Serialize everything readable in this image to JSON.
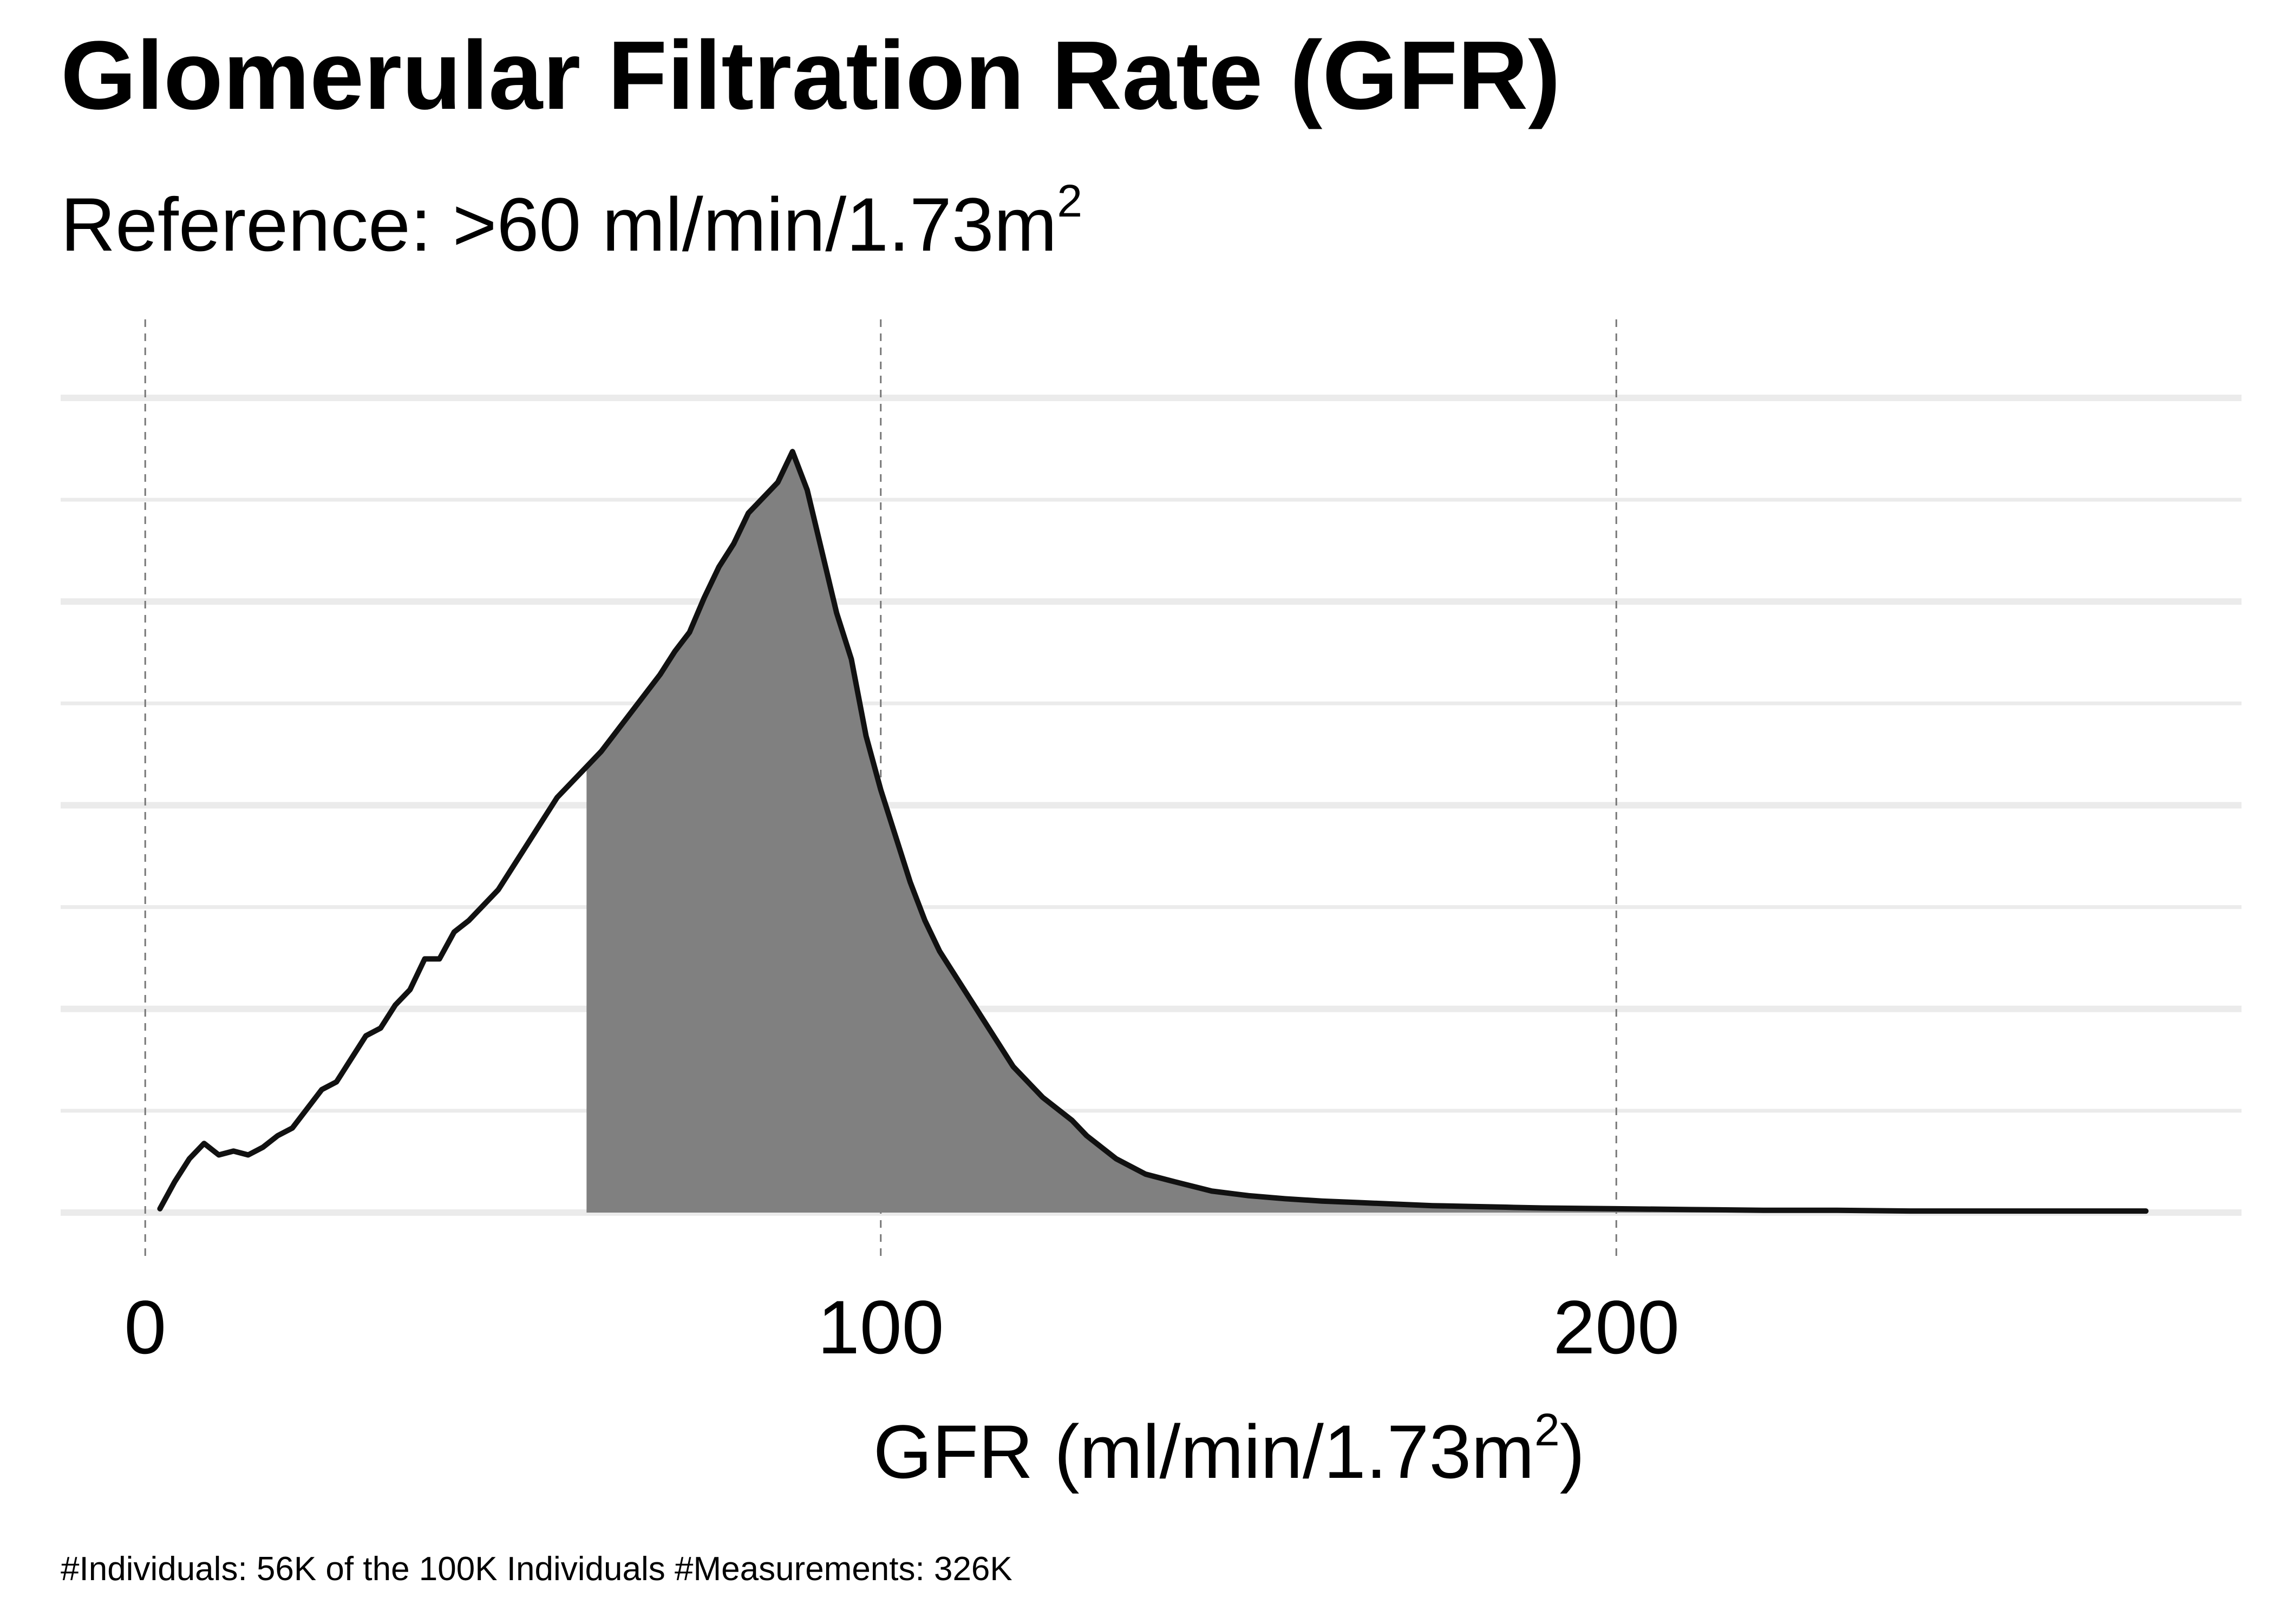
{
  "chart_data": {
    "type": "area",
    "title": "Glomerular Filtration Rate (GFR)",
    "subtitle": "Reference: >60 ml/min/1.73m²",
    "subtitle_parts": {
      "text": "Reference: >60 ml/min/1.73m",
      "sup": "2"
    },
    "xlabel": "GFR (ml/min/1.73m²)",
    "xlabel_parts": {
      "text": "GFR (ml/min/1.73m",
      "sup": "2",
      "suffix": ")"
    },
    "ylabel": "",
    "caption": "#Individuals: 56K of the 100K Individuals #Measurements: 326K",
    "xlim": [
      -11.5,
      285
    ],
    "ylim": [
      0,
      1
    ],
    "x_ticks": [
      0,
      100,
      200
    ],
    "x_tick_labels": [
      "0",
      "100",
      "200"
    ],
    "y_grid_count": 9,
    "grid": true,
    "shade_from": 60,
    "colors": {
      "line": "#111111",
      "fill": "#808080",
      "grid": "#ebebeb",
      "vline": "#777777"
    },
    "series": [
      {
        "x": [
          2,
          4,
          6,
          8,
          10,
          12,
          14,
          16,
          18,
          20,
          22,
          24,
          26,
          28,
          30,
          32,
          34,
          36,
          38,
          40,
          42,
          44,
          46,
          48,
          50,
          52,
          54,
          56,
          58,
          60,
          62,
          64,
          66,
          68,
          70,
          72,
          74,
          76,
          78,
          80,
          82,
          84,
          86,
          88,
          90,
          92,
          94,
          96,
          98,
          100,
          102,
          104,
          106,
          108,
          110,
          112,
          114,
          116,
          118,
          120,
          122,
          124,
          126,
          128,
          130,
          132,
          134,
          136,
          138,
          140,
          145,
          150,
          155,
          160,
          165,
          170,
          175,
          180,
          185,
          190,
          200,
          210,
          220,
          230,
          240,
          250,
          260,
          272
        ],
        "y": [
          0.005,
          0.04,
          0.07,
          0.09,
          0.075,
          0.08,
          0.075,
          0.085,
          0.1,
          0.11,
          0.135,
          0.16,
          0.17,
          0.2,
          0.23,
          0.24,
          0.27,
          0.29,
          0.33,
          0.33,
          0.365,
          0.38,
          0.4,
          0.42,
          0.45,
          0.48,
          0.51,
          0.54,
          0.56,
          0.58,
          0.6,
          0.625,
          0.65,
          0.675,
          0.7,
          0.73,
          0.755,
          0.8,
          0.84,
          0.87,
          0.91,
          0.93,
          0.95,
          0.99,
          0.94,
          0.86,
          0.78,
          0.72,
          0.62,
          0.55,
          0.49,
          0.43,
          0.38,
          0.34,
          0.31,
          0.28,
          0.25,
          0.22,
          0.19,
          0.17,
          0.15,
          0.135,
          0.12,
          0.1,
          0.085,
          0.07,
          0.06,
          0.05,
          0.045,
          0.04,
          0.028,
          0.022,
          0.018,
          0.015,
          0.013,
          0.011,
          0.009,
          0.008,
          0.007,
          0.006,
          0.005,
          0.004,
          0.003,
          0.003,
          0.002,
          0.002,
          0.002,
          0.002
        ]
      }
    ]
  }
}
